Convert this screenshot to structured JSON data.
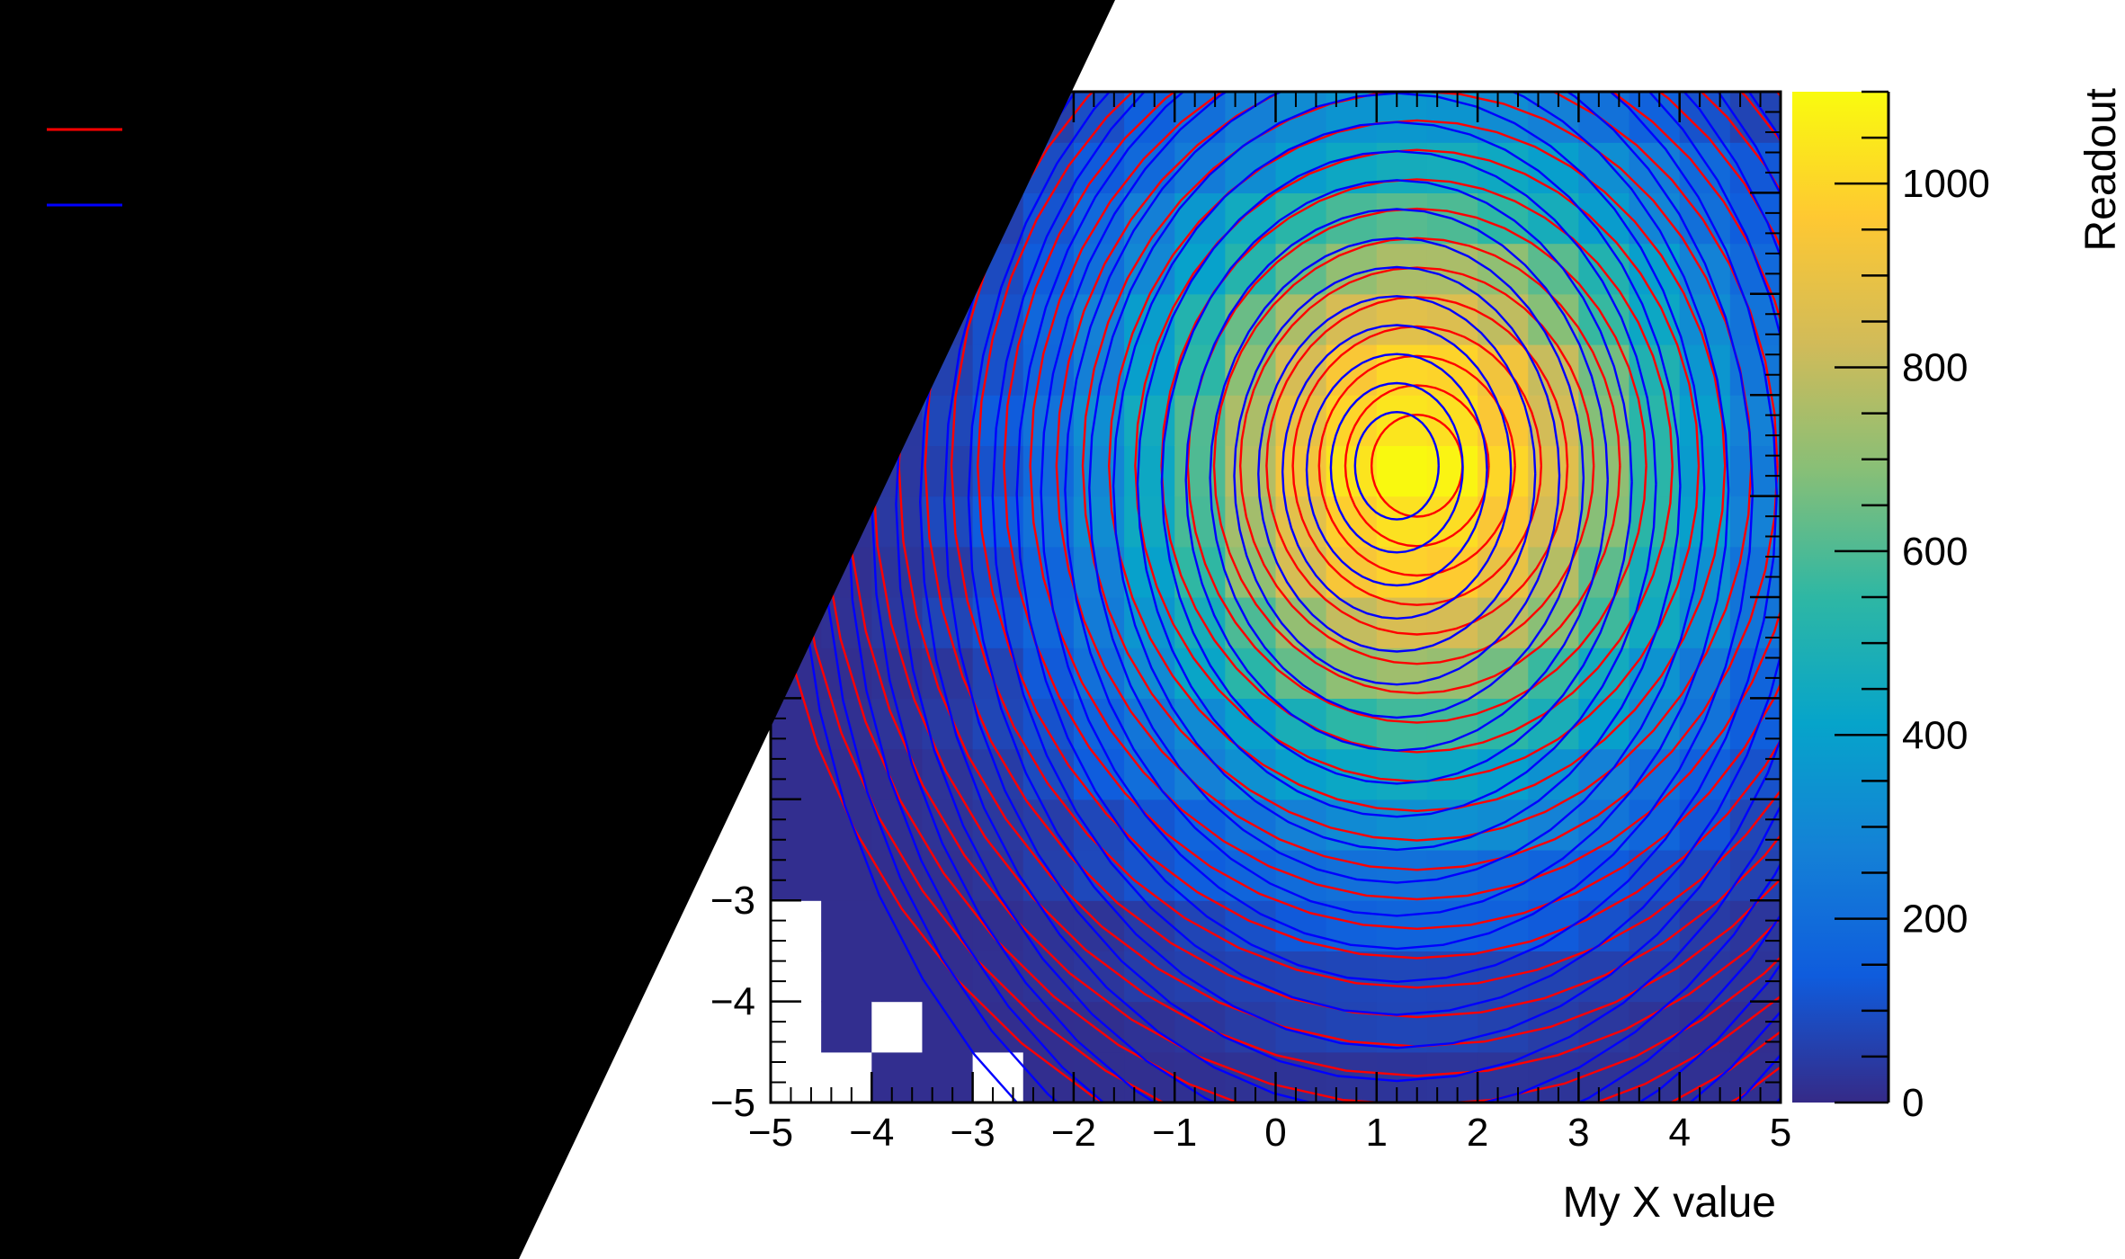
{
  "chart_data": {
    "type": "heatmap",
    "title": "",
    "xlabel": "My X value",
    "zlabel": "Readout",
    "xlim": [
      -5,
      5
    ],
    "ylim": [
      -5,
      5
    ],
    "zlim": [
      0,
      1100
    ],
    "x_ticks": [
      "−5",
      "−4",
      "−3",
      "−2",
      "−1",
      "0",
      "1",
      "2",
      "3",
      "4",
      "5"
    ],
    "y_ticks_visible": [
      "−5",
      "−4",
      "−3"
    ],
    "z_ticks": [
      "0",
      "200",
      "400",
      "600",
      "800",
      "1000"
    ],
    "colorscale": [
      "#352a87",
      "#0f5cdd",
      "#1481d6",
      "#06a4ca",
      "#2eb7a4",
      "#87bf77",
      "#d1bb59",
      "#fec832",
      "#f9fb0e"
    ],
    "peak": {
      "x": 1.4,
      "y": 1.3,
      "value": 1080
    },
    "bins": {
      "nx": 20,
      "ny": 20,
      "empty_cells": [
        [
          -5,
          -3
        ],
        [
          -5,
          -4
        ],
        [
          -5,
          -5
        ],
        [
          -4,
          -5
        ],
        [
          -4,
          -4
        ],
        [
          -3,
          -5
        ]
      ]
    },
    "contours": {
      "series": [
        {
          "color": "#ff0000",
          "center_x": 1.4,
          "center_y": 1.3,
          "levels": 24
        },
        {
          "color": "#0000ff",
          "center_x": 1.2,
          "center_y": 1.3,
          "levels": 24
        }
      ]
    },
    "legend": {
      "placement": "top-left",
      "entries": [
        {
          "color": "#ff0000"
        },
        {
          "color": "#0000ff"
        }
      ]
    }
  }
}
